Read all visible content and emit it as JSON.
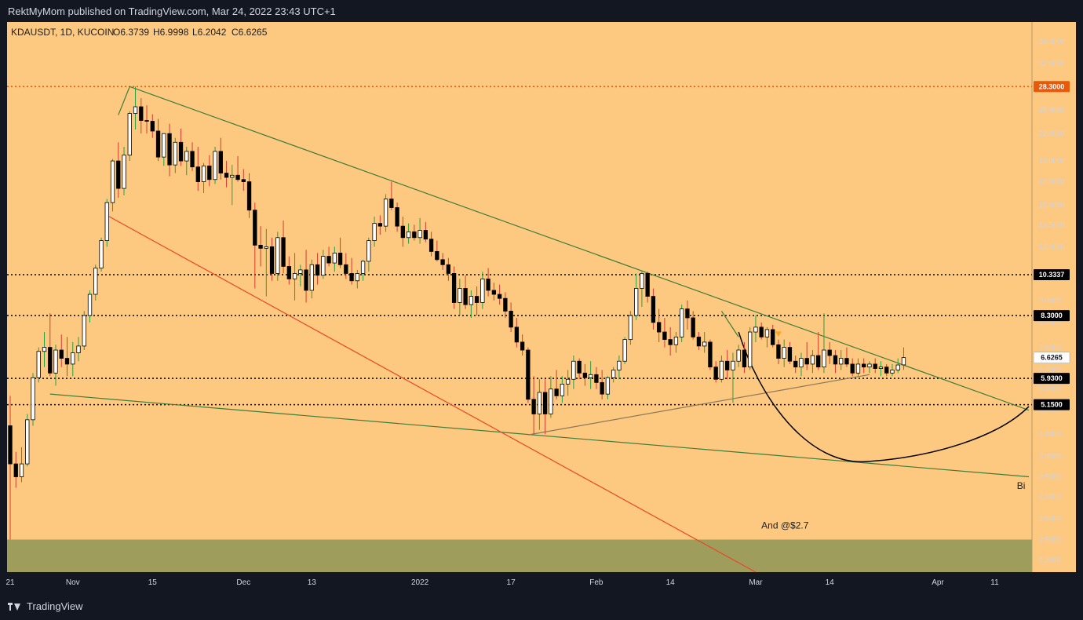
{
  "header": {
    "publish_line": "RektMyMom published on TradingView.com, Mar 24, 2022 23:43 UTC+1"
  },
  "footer": {
    "brand": "TradingView"
  },
  "chart_data": {
    "type": "candlestick",
    "symbol_line": "KDAUSDT, 1D, KUCOIN",
    "ohlc": {
      "O": "O6.3739",
      "H": "H6.9998",
      "L": "L6.2042",
      "C": "C6.6265"
    },
    "scale": "log",
    "y_range": [
      2.1,
      40
    ],
    "x_range": [
      0,
      179
    ],
    "y_ticks": [
      {
        "label": "36.0000",
        "value": 36
      },
      {
        "label": "32.0000",
        "value": 32
      },
      {
        "label": "25.0000",
        "value": 25
      },
      {
        "label": "22.0000",
        "value": 22
      },
      {
        "label": "19.0000",
        "value": 19
      },
      {
        "label": "17.0000",
        "value": 17
      },
      {
        "label": "15.0000",
        "value": 15
      },
      {
        "label": "13.5000",
        "value": 13.5
      },
      {
        "label": "12.0000",
        "value": 12
      },
      {
        "label": "9.0000",
        "value": 9
      },
      {
        "label": "8.0000",
        "value": 8
      },
      {
        "label": "7.0000",
        "value": 7
      },
      {
        "label": "6.2000",
        "value": 6.2
      },
      {
        "label": "5.6000",
        "value": 5.6
      },
      {
        "label": "5.0000",
        "value": 5.0
      },
      {
        "label": "4.4000",
        "value": 4.4
      },
      {
        "label": "3.9000",
        "value": 3.9
      },
      {
        "label": "3.5000",
        "value": 3.5
      },
      {
        "label": "3.1500",
        "value": 3.15
      },
      {
        "label": "2.8000",
        "value": 2.8
      },
      {
        "label": "2.5000",
        "value": 2.5
      },
      {
        "label": "2.2400",
        "value": 2.24
      }
    ],
    "x_ticks": [
      {
        "label": "21",
        "day": 0
      },
      {
        "label": "Nov",
        "day": 11
      },
      {
        "label": "15",
        "day": 25
      },
      {
        "label": "Dec",
        "day": 41
      },
      {
        "label": "13",
        "day": 53
      },
      {
        "label": "2022",
        "day": 72
      },
      {
        "label": "17",
        "day": 88
      },
      {
        "label": "Feb",
        "day": 103
      },
      {
        "label": "14",
        "day": 116
      },
      {
        "label": "Mar",
        "day": 131
      },
      {
        "label": "14",
        "day": 144
      },
      {
        "label": "Apr",
        "day": 163
      },
      {
        "label": "11",
        "day": 173
      }
    ],
    "horizontal_levels": [
      {
        "value": 28.3,
        "label": "28.3000",
        "color": "#e8590c",
        "tag_bg": "#e8590c",
        "style": "dotted"
      },
      {
        "value": 10.3337,
        "label": "10.3337",
        "color": "#000000",
        "tag_bg": "#000000",
        "style": "dotted"
      },
      {
        "value": 8.3,
        "label": "8.3000",
        "color": "#000000",
        "tag_bg": "#000000",
        "style": "dotted"
      },
      {
        "value": 5.93,
        "label": "5.9300",
        "color": "#000000",
        "tag_bg": "#000000",
        "style": "dotted"
      },
      {
        "value": 5.15,
        "label": "5.1500",
        "color": "#000000",
        "tag_bg": "#000000",
        "style": "dotted"
      }
    ],
    "last_price": {
      "value": 6.6265,
      "label": "6.6265"
    },
    "zone": {
      "from": 2.1,
      "to": 2.5,
      "color": "#9e9d5c"
    },
    "trendlines": [
      {
        "name": "falling-resistance",
        "color": "#3e7d3a",
        "points": [
          [
            21,
            28.3
          ],
          [
            179,
            5.0
          ]
        ]
      },
      {
        "name": "lower-support",
        "color": "#3e7d3a",
        "points": [
          [
            7,
            5.45
          ],
          [
            179,
            3.5
          ]
        ]
      },
      {
        "name": "red-channel",
        "color": "#e84828",
        "points": [
          [
            17,
            14.2
          ],
          [
            131,
            2.1
          ]
        ]
      },
      {
        "name": "rising-support",
        "color": "#8a7a5a",
        "points": [
          [
            91,
            4.38
          ],
          [
            151,
            6.05
          ]
        ]
      },
      {
        "name": "wick-link-1",
        "color": "#3e7d3a",
        "points": [
          [
            19,
            24.3
          ],
          [
            21,
            28.3
          ]
        ]
      },
      {
        "name": "wick-link-2",
        "color": "#3e7d3a",
        "points": [
          [
            125,
            8.5
          ],
          [
            128,
            7.4
          ]
        ]
      }
    ],
    "projection_curve": {
      "color": "#000000",
      "start": [
        128,
        7.6
      ],
      "bottom": [
        151,
        3.8
      ],
      "end": [
        179,
        5.1
      ]
    },
    "marker": {
      "day": 135,
      "value": 7.5,
      "color": "#f5a623"
    },
    "annotations": [
      {
        "text": "And @$2.7",
        "day": 132,
        "value": 2.65
      },
      {
        "text": "Bi",
        "day": 178,
        "value": 3.28
      }
    ],
    "candles": [
      [
        4.6,
        5.4,
        2.5,
        3.75
      ],
      [
        3.75,
        4.0,
        3.3,
        3.5
      ],
      [
        3.5,
        4.1,
        3.4,
        3.75
      ],
      [
        3.75,
        4.9,
        3.7,
        4.75
      ],
      [
        4.75,
        6.1,
        4.6,
        5.95
      ],
      [
        5.95,
        7.0,
        5.8,
        6.85
      ],
      [
        6.85,
        7.6,
        6.3,
        7.0
      ],
      [
        7.0,
        8.4,
        6.0,
        6.1
      ],
      [
        6.1,
        7.1,
        5.7,
        6.9
      ],
      [
        6.9,
        7.5,
        6.3,
        6.6
      ],
      [
        6.6,
        7.4,
        6.0,
        6.4
      ],
      [
        6.4,
        7.2,
        6.0,
        6.8
      ],
      [
        6.8,
        7.4,
        6.5,
        7.05
      ],
      [
        7.05,
        8.5,
        6.9,
        8.3
      ],
      [
        8.3,
        9.5,
        8.0,
        9.3
      ],
      [
        9.3,
        10.9,
        9.0,
        10.7
      ],
      [
        10.7,
        12.6,
        10.5,
        12.4
      ],
      [
        12.4,
        15.5,
        12.0,
        15.2
      ],
      [
        15.2,
        19.2,
        14.5,
        19.0
      ],
      [
        19.0,
        21.0,
        15.6,
        16.4
      ],
      [
        16.4,
        20.5,
        15.8,
        19.6
      ],
      [
        19.6,
        24.8,
        19.0,
        24.5
      ],
      [
        24.5,
        28.3,
        22.5,
        25.4
      ],
      [
        25.4,
        26.6,
        22.0,
        23.6
      ],
      [
        23.6,
        25.6,
        22.0,
        23.5
      ],
      [
        23.5,
        24.4,
        21.5,
        22.3
      ],
      [
        22.3,
        23.8,
        19.0,
        19.4
      ],
      [
        19.4,
        22.0,
        18.5,
        22.0
      ],
      [
        22.0,
        23.2,
        17.5,
        18.6
      ],
      [
        18.6,
        21.5,
        17.8,
        21.0
      ],
      [
        21.0,
        22.6,
        18.5,
        19.0
      ],
      [
        19.0,
        20.5,
        17.6,
        20.0
      ],
      [
        20.0,
        21.0,
        18.0,
        18.4
      ],
      [
        18.4,
        20.5,
        16.2,
        17.0
      ],
      [
        17.0,
        18.8,
        16.0,
        18.5
      ],
      [
        18.5,
        19.6,
        16.6,
        17.2
      ],
      [
        17.2,
        20.5,
        16.8,
        20.0
      ],
      [
        20.0,
        21.5,
        17.2,
        17.8
      ],
      [
        17.8,
        19.0,
        16.5,
        17.4
      ],
      [
        17.4,
        18.6,
        15.0,
        17.6
      ],
      [
        17.6,
        19.5,
        17.0,
        17.2
      ],
      [
        17.2,
        18.2,
        16.2,
        17.0
      ],
      [
        17.0,
        17.8,
        14.0,
        14.6
      ],
      [
        14.6,
        15.2,
        9.6,
        12.1
      ],
      [
        12.1,
        13.4,
        10.8,
        11.9
      ],
      [
        11.9,
        13.2,
        9.2,
        12.0
      ],
      [
        12.0,
        12.6,
        10.0,
        10.4
      ],
      [
        10.4,
        13.0,
        10.0,
        12.6
      ],
      [
        12.6,
        13.8,
        10.4,
        10.8
      ],
      [
        10.8,
        11.4,
        9.8,
        10.1
      ],
      [
        10.1,
        11.6,
        9.0,
        10.4
      ],
      [
        10.4,
        10.9,
        9.7,
        10.6
      ],
      [
        10.6,
        11.8,
        8.9,
        9.5
      ],
      [
        9.5,
        11.2,
        9.1,
        10.9
      ],
      [
        10.9,
        11.6,
        9.8,
        10.3
      ],
      [
        10.3,
        11.8,
        10.1,
        11.4
      ],
      [
        11.4,
        12.0,
        10.8,
        11.0
      ],
      [
        11.0,
        12.0,
        10.5,
        11.6
      ],
      [
        11.6,
        12.6,
        10.7,
        10.9
      ],
      [
        10.9,
        11.6,
        10.1,
        10.4
      ],
      [
        10.4,
        11.3,
        9.8,
        10.0
      ],
      [
        10.0,
        10.6,
        9.6,
        10.4
      ],
      [
        10.4,
        11.2,
        10.0,
        11.1
      ],
      [
        11.1,
        12.6,
        10.5,
        12.4
      ],
      [
        12.4,
        14.1,
        12.0,
        13.6
      ],
      [
        13.6,
        14.2,
        12.8,
        13.4
      ],
      [
        13.4,
        15.9,
        13.0,
        15.5
      ],
      [
        15.5,
        17.0,
        14.6,
        14.8
      ],
      [
        14.8,
        15.2,
        13.0,
        13.4
      ],
      [
        13.4,
        14.1,
        12.0,
        12.6
      ],
      [
        12.6,
        13.6,
        12.2,
        13.0
      ],
      [
        13.0,
        13.5,
        12.4,
        12.6
      ],
      [
        12.6,
        14.0,
        12.2,
        13.1
      ],
      [
        13.1,
        13.7,
        12.3,
        12.5
      ],
      [
        12.5,
        13.0,
        11.4,
        11.7
      ],
      [
        11.7,
        12.4,
        11.1,
        11.2
      ],
      [
        11.2,
        11.6,
        10.6,
        10.9
      ],
      [
        10.9,
        11.3,
        10.0,
        10.4
      ],
      [
        10.4,
        10.8,
        8.6,
        8.9
      ],
      [
        8.9,
        10.1,
        8.3,
        9.6
      ],
      [
        9.6,
        10.3,
        8.6,
        8.8
      ],
      [
        8.8,
        9.5,
        8.2,
        9.2
      ],
      [
        9.2,
        9.7,
        8.3,
        8.9
      ],
      [
        8.9,
        10.5,
        8.6,
        10.1
      ],
      [
        10.1,
        10.7,
        9.2,
        9.5
      ],
      [
        9.5,
        9.9,
        9.0,
        9.3
      ],
      [
        9.3,
        9.8,
        8.8,
        9.1
      ],
      [
        9.1,
        9.4,
        8.2,
        8.5
      ],
      [
        8.5,
        8.9,
        7.6,
        7.8
      ],
      [
        7.8,
        8.2,
        7.0,
        7.2
      ],
      [
        7.2,
        7.5,
        6.7,
        6.9
      ],
      [
        6.9,
        7.0,
        5.2,
        5.3
      ],
      [
        5.3,
        6.0,
        4.4,
        4.9
      ],
      [
        4.9,
        5.9,
        4.5,
        5.5
      ],
      [
        5.5,
        5.9,
        4.4,
        4.9
      ],
      [
        4.9,
        6.0,
        4.8,
        5.6
      ],
      [
        5.6,
        6.2,
        5.3,
        5.4
      ],
      [
        5.4,
        6.0,
        5.2,
        5.75
      ],
      [
        5.75,
        6.2,
        5.4,
        5.9
      ],
      [
        5.9,
        6.7,
        5.6,
        6.5
      ],
      [
        6.5,
        6.6,
        5.9,
        6.1
      ],
      [
        6.1,
        6.4,
        5.7,
        5.95
      ],
      [
        5.95,
        6.5,
        5.6,
        6.05
      ],
      [
        6.05,
        6.3,
        5.6,
        5.8
      ],
      [
        5.8,
        6.2,
        5.3,
        5.45
      ],
      [
        5.45,
        6.0,
        5.3,
        5.95
      ],
      [
        5.95,
        6.3,
        5.8,
        6.2
      ],
      [
        6.2,
        6.7,
        5.9,
        6.5
      ],
      [
        6.5,
        7.4,
        6.4,
        7.3
      ],
      [
        7.3,
        8.5,
        7.1,
        8.3
      ],
      [
        8.3,
        10.4,
        8.1,
        9.6
      ],
      [
        9.6,
        10.5,
        8.7,
        10.4
      ],
      [
        10.4,
        10.5,
        8.9,
        9.2
      ],
      [
        9.2,
        9.6,
        7.7,
        8.0
      ],
      [
        8.0,
        8.6,
        7.2,
        7.6
      ],
      [
        7.6,
        8.2,
        7.0,
        7.3
      ],
      [
        7.3,
        7.8,
        6.7,
        7.1
      ],
      [
        7.1,
        7.6,
        6.8,
        7.4
      ],
      [
        7.4,
        8.8,
        7.2,
        8.6
      ],
      [
        8.6,
        9.0,
        7.7,
        8.2
      ],
      [
        8.2,
        8.5,
        7.3,
        7.4
      ],
      [
        7.4,
        7.6,
        6.9,
        7.05
      ],
      [
        7.05,
        7.6,
        6.8,
        7.2
      ],
      [
        7.2,
        7.3,
        6.2,
        6.3
      ],
      [
        6.3,
        6.5,
        5.8,
        5.9
      ],
      [
        5.9,
        6.7,
        5.8,
        6.5
      ],
      [
        6.5,
        6.9,
        5.9,
        6.2
      ],
      [
        6.2,
        6.8,
        5.2,
        6.5
      ],
      [
        6.5,
        7.1,
        6.3,
        6.9
      ],
      [
        6.9,
        7.2,
        6.1,
        6.3
      ],
      [
        6.3,
        7.8,
        6.2,
        7.6
      ],
      [
        7.6,
        8.3,
        7.2,
        7.8
      ],
      [
        7.8,
        8.0,
        7.3,
        7.4
      ],
      [
        7.4,
        7.8,
        7.0,
        7.7
      ],
      [
        7.7,
        7.9,
        7.0,
        7.1
      ],
      [
        7.1,
        7.3,
        6.4,
        6.6
      ],
      [
        6.6,
        7.3,
        6.3,
        7.0
      ],
      [
        7.0,
        7.2,
        6.4,
        6.5
      ],
      [
        6.5,
        6.7,
        6.1,
        6.3
      ],
      [
        6.3,
        6.8,
        6.0,
        6.6
      ],
      [
        6.6,
        7.2,
        6.2,
        6.4
      ],
      [
        6.4,
        6.9,
        6.1,
        6.7
      ],
      [
        6.7,
        7.6,
        6.2,
        6.3
      ],
      [
        6.3,
        8.4,
        6.1,
        6.9
      ],
      [
        6.9,
        7.2,
        6.4,
        6.7
      ],
      [
        6.7,
        6.9,
        6.1,
        6.4
      ],
      [
        6.4,
        6.9,
        6.2,
        6.6
      ],
      [
        6.6,
        7.0,
        6.3,
        6.4
      ],
      [
        6.4,
        6.6,
        6.0,
        6.1
      ],
      [
        6.1,
        6.6,
        6.0,
        6.4
      ],
      [
        6.4,
        6.6,
        6.1,
        6.3
      ],
      [
        6.3,
        6.5,
        6.1,
        6.4
      ],
      [
        6.4,
        6.6,
        6.1,
        6.25
      ],
      [
        6.25,
        6.5,
        6.0,
        6.3
      ],
      [
        6.3,
        6.4,
        6.0,
        6.1
      ],
      [
        6.1,
        6.4,
        6.0,
        6.2
      ],
      [
        6.2,
        6.6,
        6.1,
        6.37
      ],
      [
        6.3739,
        6.9998,
        6.2042,
        6.6265
      ]
    ]
  }
}
